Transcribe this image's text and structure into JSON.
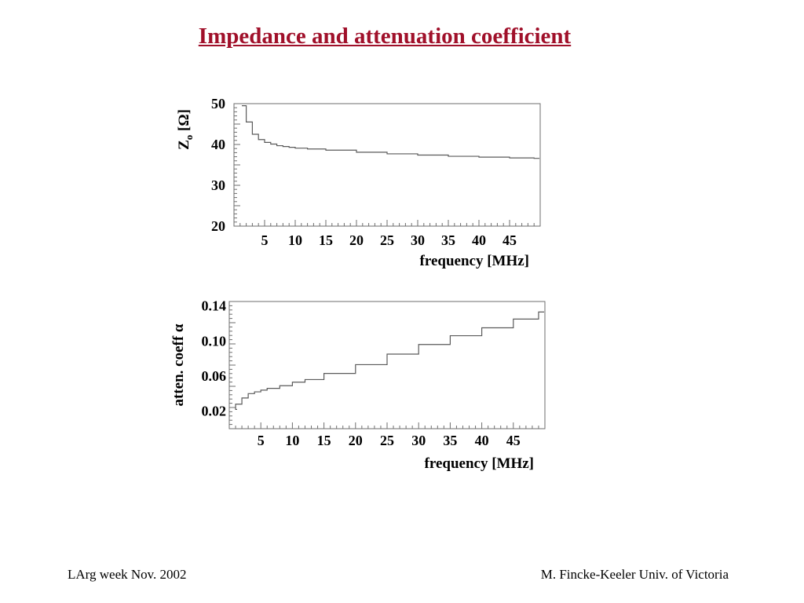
{
  "title": "Impedance and attenuation coefficient",
  "footer": {
    "left": "LArg week  Nov. 2002",
    "right": "M. Fincke-Keeler Univ. of Victoria"
  },
  "colors": {
    "title": "#a0102a",
    "line": "#5a5a5a",
    "frame": "#6e6e6e"
  },
  "chart_data": [
    {
      "type": "line",
      "style": "step histogram",
      "ylabel": "Zo [Ω]",
      "xlabel": "frequency [MHz]",
      "xlim": [
        0,
        50
      ],
      "ylim": [
        20,
        50
      ],
      "grid": false,
      "xticks": [
        5,
        10,
        15,
        20,
        25,
        30,
        35,
        40,
        45
      ],
      "yticks": [
        "20",
        "30",
        "40",
        "50"
      ],
      "x": [
        1,
        2,
        3,
        4,
        5,
        6,
        7,
        8,
        9,
        10,
        12,
        15,
        20,
        25,
        30,
        35,
        40,
        45,
        49
      ],
      "y": [
        49.5,
        45.5,
        42.5,
        41.2,
        40.5,
        40.1,
        39.7,
        39.5,
        39.3,
        39.1,
        38.9,
        38.6,
        38.1,
        37.7,
        37.4,
        37.1,
        36.9,
        36.7,
        36.6
      ]
    },
    {
      "type": "line",
      "style": "step histogram",
      "ylabel": "atten. coeff α",
      "xlabel": "frequency [MHz]",
      "xlim": [
        0,
        50
      ],
      "ylim": [
        0.0,
        0.145
      ],
      "grid": false,
      "xticks": [
        5,
        10,
        15,
        20,
        25,
        30,
        35,
        40,
        45
      ],
      "yticks": [
        "0.02",
        "0.06",
        "0.10",
        "0.14"
      ],
      "x": [
        0.5,
        1,
        2,
        3,
        4,
        5,
        6,
        8,
        10,
        12,
        15,
        20,
        25,
        30,
        35,
        40,
        45,
        49
      ],
      "y": [
        0.022,
        0.028,
        0.035,
        0.04,
        0.042,
        0.044,
        0.046,
        0.049,
        0.053,
        0.056,
        0.063,
        0.073,
        0.085,
        0.096,
        0.106,
        0.115,
        0.125,
        0.133
      ]
    }
  ]
}
